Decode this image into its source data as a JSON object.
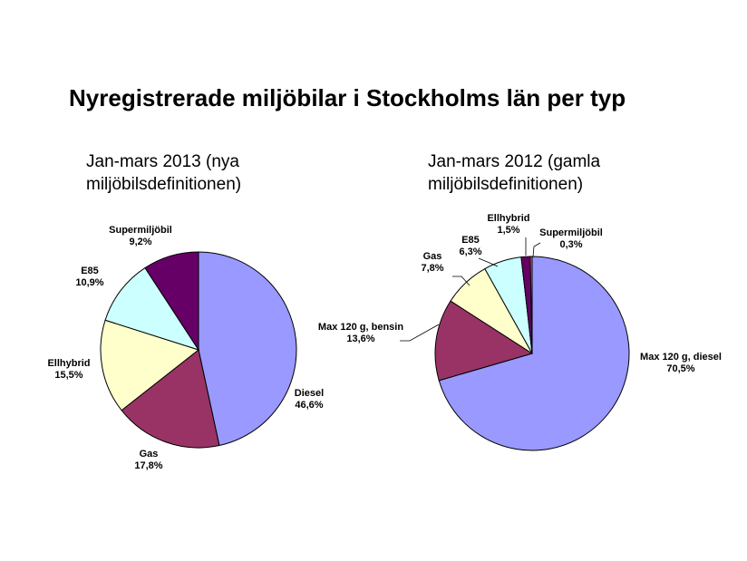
{
  "title": "Nyregistrerade miljöbilar i Stockholms län per typ",
  "chart_data": [
    {
      "type": "pie",
      "title_lines": [
        "Jan-mars 2013 (nya",
        "miljöbilsdefinitionen)"
      ],
      "slices": [
        {
          "label": "Diesel",
          "value": 46.6,
          "value_label": "46,6%",
          "color": "#9999ff"
        },
        {
          "label": "Gas",
          "value": 17.8,
          "value_label": "17,8%",
          "color": "#993366"
        },
        {
          "label": "Ellhybrid",
          "value": 15.5,
          "value_label": "15,5%",
          "color": "#ffffcc"
        },
        {
          "label": "E85",
          "value": 10.9,
          "value_label": "10,9%",
          "color": "#ccffff"
        },
        {
          "label": "Supermiljöbil",
          "value": 9.2,
          "value_label": "9,2%",
          "color": "#660066"
        }
      ]
    },
    {
      "type": "pie",
      "title_lines": [
        "Jan-mars 2012 (gamla",
        "miljöbilsdefinitionen)"
      ],
      "slices": [
        {
          "label": "Max 120 g, diesel",
          "value": 70.5,
          "value_label": "70,5%",
          "color": "#9999ff"
        },
        {
          "label": "Max 120 g, bensin",
          "value": 13.6,
          "value_label": "13,6%",
          "color": "#993366"
        },
        {
          "label": "Gas",
          "value": 7.8,
          "value_label": "7,8%",
          "color": "#ffffcc"
        },
        {
          "label": "E85",
          "value": 6.3,
          "value_label": "6,3%",
          "color": "#ccffff"
        },
        {
          "label": "Ellhybrid",
          "value": 1.5,
          "value_label": "1,5%",
          "color": "#660066"
        },
        {
          "label": "Supermiljöbil",
          "value": 0.3,
          "value_label": "0,3%",
          "color": "#ff8080"
        }
      ]
    }
  ]
}
